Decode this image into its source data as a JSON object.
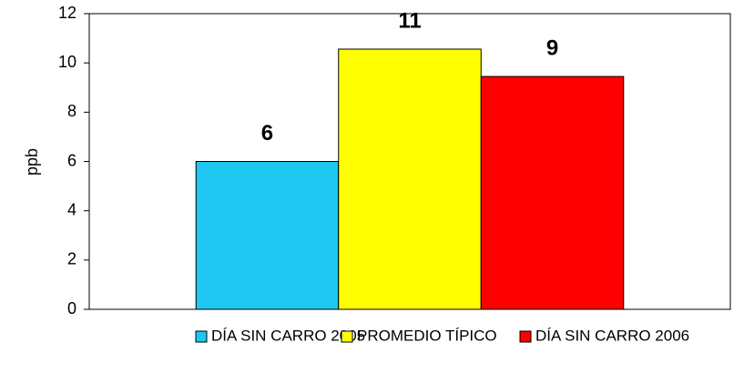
{
  "chart_data": {
    "type": "bar",
    "ylabel": "ppb",
    "categories": [
      null
    ],
    "series": [
      {
        "name": "DÍA SIN CARRO 2005",
        "color": "#1ec8f0",
        "values": [
          6
        ],
        "value_labels": [
          "6"
        ]
      },
      {
        "name": "PROMEDIO TÍPICO",
        "color": "#ffff00",
        "values": [
          10.56
        ],
        "value_labels": [
          "11"
        ]
      },
      {
        "name": "DÍA SIN CARRO 2006",
        "color": "#ff0000",
        "values": [
          9.45
        ],
        "value_labels": [
          "9"
        ]
      }
    ],
    "ylim": [
      0,
      12
    ],
    "yticks": [
      0,
      2,
      4,
      6,
      8,
      10,
      12
    ],
    "grid": false,
    "legend": "bottom"
  }
}
